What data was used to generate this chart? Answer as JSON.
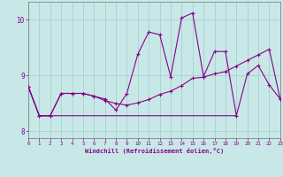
{
  "xlabel": "Windchill (Refroidissement éolien,°C)",
  "background_color": "#c8e8e8",
  "grid_color": "#a8d0d0",
  "line_color": "#880088",
  "xlim": [
    0,
    23
  ],
  "ylim": [
    7.88,
    10.32
  ],
  "yticks": [
    8,
    9,
    10
  ],
  "xticks": [
    0,
    1,
    2,
    3,
    4,
    5,
    6,
    7,
    8,
    9,
    10,
    11,
    12,
    13,
    14,
    15,
    16,
    17,
    18,
    19,
    20,
    21,
    22,
    23
  ],
  "series1_x": [
    0,
    1,
    2,
    3,
    4,
    5,
    6,
    7,
    8,
    9,
    10,
    11,
    12,
    13,
    14,
    15,
    16,
    17,
    18,
    19,
    20,
    21,
    22,
    23
  ],
  "series1_y": [
    8.8,
    8.28,
    8.28,
    8.68,
    8.68,
    8.68,
    8.63,
    8.58,
    8.38,
    8.68,
    9.38,
    9.78,
    9.73,
    8.98,
    10.03,
    10.12,
    8.98,
    9.43,
    9.43,
    8.28,
    9.03,
    9.18,
    8.83,
    8.58
  ],
  "series2_x": [
    0,
    1,
    2,
    3,
    4,
    5,
    6,
    7,
    8,
    9,
    10,
    11,
    12,
    13,
    14,
    15,
    16,
    17,
    18,
    19,
    20,
    21,
    22,
    23
  ],
  "series2_y": [
    8.8,
    8.28,
    8.28,
    8.68,
    8.68,
    8.68,
    8.63,
    8.55,
    8.5,
    8.47,
    8.51,
    8.57,
    8.66,
    8.72,
    8.82,
    8.95,
    8.97,
    9.03,
    9.07,
    9.17,
    9.27,
    9.37,
    9.47,
    8.58
  ],
  "series3_x": [
    0,
    1,
    19
  ],
  "series3_y": [
    8.8,
    8.28,
    8.28
  ]
}
